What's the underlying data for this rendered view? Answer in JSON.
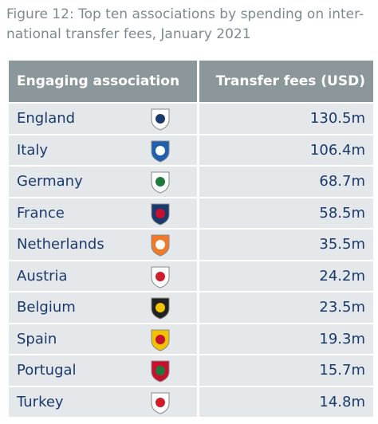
{
  "title": [
    "Figure 12: Top ten associations by spending on inter-",
    "national transfer fees, January 2021"
  ],
  "table": {
    "header": [
      "Engaging association",
      "Transfer fees (USD)"
    ],
    "rows": [
      [
        "England",
        "130.5m"
      ],
      [
        "Italy",
        "106.4m"
      ],
      [
        "Germany",
        "68.7m"
      ],
      [
        "France",
        "58.5m"
      ],
      [
        "Netherlands",
        "35.5m"
      ],
      [
        "Austria",
        "24.2m"
      ],
      [
        "Belgium",
        "23.5m"
      ],
      [
        "Spain",
        "19.3m"
      ],
      [
        "Portugal",
        "15.7m"
      ],
      [
        "Turkey",
        "14.8m"
      ]
    ]
  }
}
